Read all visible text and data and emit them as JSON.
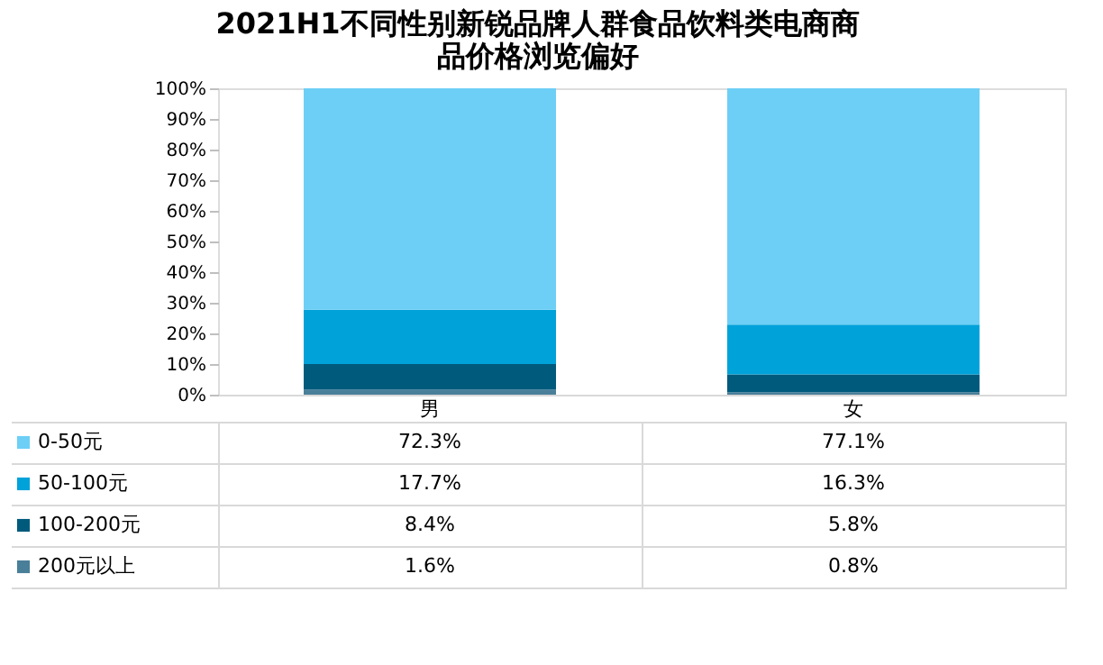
{
  "chart_data": {
    "type": "bar",
    "title": "2021H1不同性别新锐品牌人群食品饮料类电商商品价格浏览偏好",
    "categories": [
      "男",
      "女"
    ],
    "stacked": true,
    "legend": "bottom",
    "grid": false,
    "ylim": [
      0,
      100
    ],
    "yticks": [
      {
        "value": 0,
        "label": "0%"
      },
      {
        "value": 10,
        "label": "10%"
      },
      {
        "value": 20,
        "label": "20%"
      },
      {
        "value": 30,
        "label": "30%"
      },
      {
        "value": 40,
        "label": "40%"
      },
      {
        "value": 50,
        "label": "50%"
      },
      {
        "value": 60,
        "label": "60%"
      },
      {
        "value": 70,
        "label": "70%"
      },
      {
        "value": 80,
        "label": "80%"
      },
      {
        "value": 90,
        "label": "90%"
      },
      {
        "value": 100,
        "label": "100%"
      }
    ],
    "series": [
      {
        "name": "200元以上",
        "color": "#4a7f99",
        "values": [
          1.6,
          0.8
        ],
        "value_labels": [
          "1.6%",
          "0.8%"
        ]
      },
      {
        "name": "100-200元",
        "color": "#005a7c",
        "values": [
          8.4,
          5.8
        ],
        "value_labels": [
          "8.4%",
          "5.8%"
        ]
      },
      {
        "name": "50-100元",
        "color": "#00a2da",
        "values": [
          17.7,
          16.3
        ],
        "value_labels": [
          "17.7%",
          "16.3%"
        ]
      },
      {
        "name": "0-50元",
        "color": "#6dcff6",
        "values": [
          72.3,
          77.1
        ],
        "value_labels": [
          "72.3%",
          "77.1%"
        ]
      }
    ]
  }
}
